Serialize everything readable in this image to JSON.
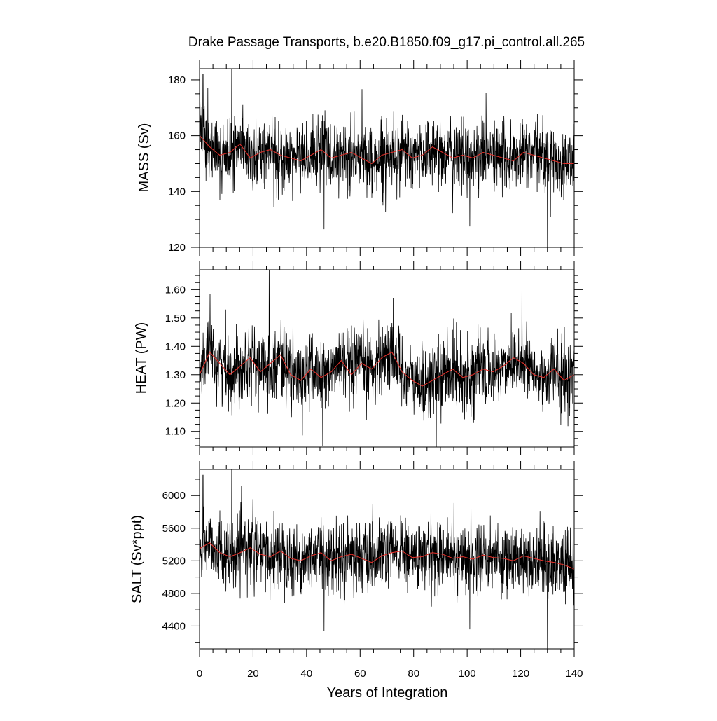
{
  "chart_data": {
    "type": "line",
    "title": "Drake Passage Transports, b.e20.B1850.f09_g17.pi_control.all.265",
    "xlabel": "Years of Integration",
    "xlim": [
      0,
      140
    ],
    "xticks": [
      0,
      20,
      40,
      60,
      80,
      100,
      120,
      140
    ],
    "grid": false,
    "legend": "none",
    "colors": {
      "monthly": "#000000",
      "smoothed": "#e0302a"
    },
    "panels": [
      {
        "ylabel": "MASS (Sv)",
        "ylim": [
          120,
          184
        ],
        "yticks": [
          120,
          140,
          160,
          180
        ],
        "yminor": 5,
        "ydecimals": 0,
        "monthly": {
          "mean": 153.5,
          "sd": 7.2,
          "trend": -4.5
        },
        "smoothed": [
          160,
          156,
          153,
          154,
          157,
          152,
          154,
          155,
          153,
          152,
          151,
          153,
          155,
          152,
          153,
          154,
          152,
          150,
          153,
          154,
          155,
          152,
          153,
          156,
          154,
          152,
          153,
          152,
          154,
          153,
          152,
          151,
          154,
          153,
          152,
          151,
          150,
          150
        ],
        "extremes": [
          {
            "x": 1.3,
            "y": 182
          },
          {
            "x": 12.0,
            "y": 184
          },
          {
            "x": 46.5,
            "y": 126.5
          },
          {
            "x": 101.0,
            "y": 127.5
          },
          {
            "x": 130.0,
            "y": 120
          }
        ]
      },
      {
        "ylabel": "HEAT (PW)",
        "ylim": [
          1.045,
          1.67
        ],
        "yticks": [
          1.1,
          1.2,
          1.3,
          1.4,
          1.5,
          1.6
        ],
        "yminor": 0.025,
        "ydecimals": 2,
        "monthly": {
          "mean": 1.31,
          "sd": 0.075,
          "trend": -0.01
        },
        "smoothed": [
          1.3,
          1.38,
          1.34,
          1.3,
          1.33,
          1.36,
          1.31,
          1.34,
          1.37,
          1.3,
          1.28,
          1.32,
          1.29,
          1.31,
          1.35,
          1.3,
          1.34,
          1.32,
          1.36,
          1.38,
          1.31,
          1.28,
          1.26,
          1.28,
          1.3,
          1.32,
          1.29,
          1.3,
          1.32,
          1.31,
          1.33,
          1.36,
          1.34,
          1.3,
          1.29,
          1.32,
          1.28,
          1.3
        ],
        "extremes": [
          {
            "x": 26.0,
            "y": 1.67
          },
          {
            "x": 46.0,
            "y": 1.05
          },
          {
            "x": 88.5,
            "y": 1.045
          },
          {
            "x": 120.5,
            "y": 1.595
          }
        ]
      },
      {
        "ylabel": "SALT (Sv*ppt)",
        "ylim": [
          4120,
          6320
        ],
        "yticks": [
          4400,
          4800,
          5200,
          5600,
          6000
        ],
        "yminor": 200,
        "ydecimals": 0,
        "monthly": {
          "mean": 5240,
          "sd": 250,
          "trend": -150
        },
        "smoothed": [
          5350,
          5420,
          5300,
          5250,
          5300,
          5360,
          5280,
          5250,
          5320,
          5230,
          5200,
          5260,
          5300,
          5200,
          5250,
          5280,
          5230,
          5180,
          5260,
          5300,
          5320,
          5240,
          5250,
          5300,
          5280,
          5230,
          5250,
          5220,
          5270,
          5240,
          5230,
          5200,
          5260,
          5230,
          5200,
          5180,
          5150,
          5100
        ],
        "extremes": [
          {
            "x": 1.3,
            "y": 6250
          },
          {
            "x": 12.0,
            "y": 6320
          },
          {
            "x": 46.5,
            "y": 4340
          },
          {
            "x": 101.0,
            "y": 4360
          },
          {
            "x": 130.0,
            "y": 4120
          }
        ]
      }
    ]
  }
}
